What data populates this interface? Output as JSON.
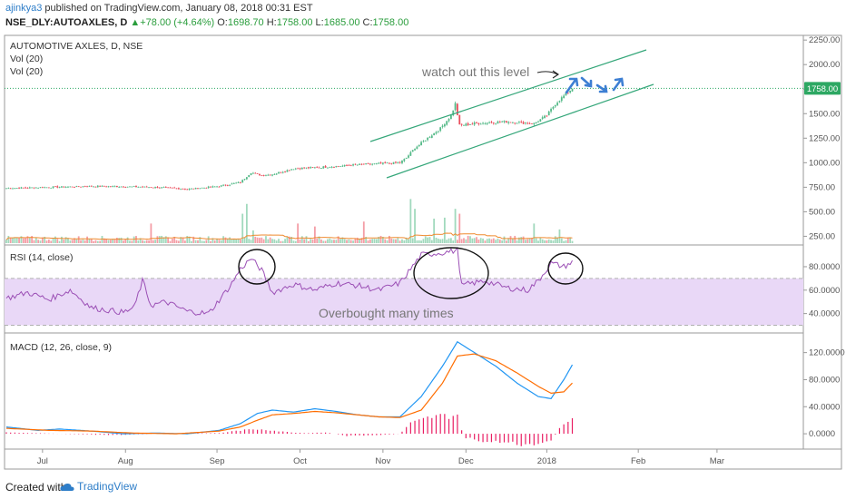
{
  "header": {
    "author": "ajinkya3",
    "published": "published on TradingView.com, January 08, 2018 00:31 EST",
    "symbol": "NSE_DLY:AUTOAXLES, D",
    "change": "+78.00 (+4.64%)",
    "ohlc": {
      "o_label": "O:",
      "o": "1698.70",
      "h_label": "H:",
      "h": "1758.00",
      "l_label": "L:",
      "l": "1685.00",
      "c_label": "C:",
      "c": "1758.00"
    }
  },
  "footer": {
    "created_with": "Created with",
    "brand": "TradingView"
  },
  "colors": {
    "up": "#53b987",
    "down": "#eb4d5c",
    "rsi": "#9b4fb5",
    "rsi_band": "#e9d8f7",
    "macd": "#2196f3",
    "signal": "#ff6d00",
    "hist": "#e91e63",
    "channel": "#35a77a",
    "annot_blue": "#3d7fd3",
    "last_price": "#2da863"
  },
  "chart_data": [
    {
      "type": "candlestick",
      "title": "AUTOMOTIVE AXLES, D, NSE",
      "sublabels": [
        "Vol (20)",
        "Vol (20)"
      ],
      "y_ticks": [
        "2250.00",
        "2000.00",
        "1750.00",
        "1500.00",
        "1250.00",
        "1000.00",
        "750.00",
        "500.00",
        "250.00"
      ],
      "ylim": [
        180,
        2270
      ],
      "last_price": "1758.00",
      "x_labels": [
        "Jul",
        "Aug",
        "Sep",
        "Oct",
        "Nov",
        "Dec",
        "2018",
        "Feb",
        "Mar"
      ],
      "close_anchors": [
        [
          0,
          740
        ],
        [
          40,
          760
        ],
        [
          62,
          755
        ],
        [
          75,
          745
        ],
        [
          85,
          730
        ],
        [
          100,
          760
        ],
        [
          110,
          800
        ],
        [
          115,
          900
        ],
        [
          120,
          870
        ],
        [
          125,
          880
        ],
        [
          135,
          940
        ],
        [
          145,
          950
        ],
        [
          160,
          970
        ],
        [
          165,
          980
        ],
        [
          175,
          990
        ],
        [
          185,
          1000
        ],
        [
          188,
          1050
        ],
        [
          192,
          1150
        ],
        [
          198,
          1250
        ],
        [
          204,
          1350
        ],
        [
          209,
          1480
        ],
        [
          211,
          1600
        ],
        [
          213,
          1380
        ],
        [
          220,
          1400
        ],
        [
          235,
          1420
        ],
        [
          248,
          1400
        ],
        [
          254,
          1480
        ],
        [
          258,
          1600
        ],
        [
          263,
          1700
        ],
        [
          266,
          1758
        ]
      ],
      "volume_spikes": [
        [
          68,
          200
        ],
        [
          111,
          300
        ],
        [
          113,
          400
        ],
        [
          116,
          130
        ],
        [
          137,
          200
        ],
        [
          145,
          170
        ],
        [
          168,
          220
        ],
        [
          190,
          450
        ],
        [
          192,
          350
        ],
        [
          201,
          250
        ],
        [
          206,
          260
        ],
        [
          211,
          350
        ],
        [
          213,
          300
        ],
        [
          248,
          200
        ],
        [
          260,
          140
        ]
      ],
      "annotations": [
        {
          "text": "watch out this level"
        },
        {
          "text": "Overbought many times"
        }
      ]
    },
    {
      "type": "line",
      "title": "RSI (14, close)",
      "y_ticks": [
        "80.0000",
        "60.0000",
        "40.0000"
      ],
      "ylim": [
        25,
        97
      ],
      "bands": [
        70,
        30
      ],
      "anchors": [
        [
          0,
          53
        ],
        [
          10,
          58
        ],
        [
          20,
          52
        ],
        [
          30,
          60
        ],
        [
          40,
          45
        ],
        [
          55,
          41
        ],
        [
          60,
          45
        ],
        [
          64,
          68
        ],
        [
          68,
          47
        ],
        [
          75,
          50
        ],
        [
          85,
          42
        ],
        [
          95,
          40
        ],
        [
          105,
          63
        ],
        [
          110,
          78
        ],
        [
          115,
          87
        ],
        [
          120,
          77
        ],
        [
          125,
          58
        ],
        [
          135,
          65
        ],
        [
          145,
          60
        ],
        [
          155,
          66
        ],
        [
          165,
          64
        ],
        [
          175,
          60
        ],
        [
          185,
          66
        ],
        [
          190,
          78
        ],
        [
          195,
          90
        ],
        [
          205,
          92
        ],
        [
          212,
          94
        ],
        [
          214,
          64
        ],
        [
          225,
          68
        ],
        [
          235,
          62
        ],
        [
          245,
          60
        ],
        [
          250,
          68
        ],
        [
          256,
          83
        ],
        [
          262,
          80
        ],
        [
          266,
          84
        ]
      ]
    },
    {
      "type": "line",
      "title": "MACD (12, 26, close, 9)",
      "y_ticks": [
        "120.0000",
        "80.0000",
        "40.0000",
        "0.0000"
      ],
      "ylim": [
        -20,
        145
      ],
      "series": [
        {
          "anchors": [
            [
              0,
              10
            ],
            [
              15,
              5
            ],
            [
              25,
              7
            ],
            [
              40,
              4
            ],
            [
              55,
              0
            ],
            [
              70,
              1
            ],
            [
              85,
              0
            ],
            [
              100,
              5
            ],
            [
              110,
              15
            ],
            [
              118,
              30
            ],
            [
              125,
              35
            ],
            [
              135,
              32
            ],
            [
              145,
              37
            ],
            [
              155,
              33
            ],
            [
              165,
              28
            ],
            [
              175,
              25
            ],
            [
              185,
              25
            ],
            [
              195,
              55
            ],
            [
              205,
              100
            ],
            [
              212,
              136
            ],
            [
              220,
              120
            ],
            [
              230,
              100
            ],
            [
              240,
              75
            ],
            [
              250,
              55
            ],
            [
              256,
              52
            ],
            [
              262,
              80
            ],
            [
              266,
              102
            ]
          ]
        },
        {
          "anchors": [
            [
              0,
              8
            ],
            [
              20,
              5
            ],
            [
              40,
              4
            ],
            [
              60,
              1
            ],
            [
              80,
              0
            ],
            [
              100,
              4
            ],
            [
              110,
              10
            ],
            [
              118,
              20
            ],
            [
              125,
              28
            ],
            [
              135,
              30
            ],
            [
              145,
              33
            ],
            [
              155,
              31
            ],
            [
              165,
              28
            ],
            [
              175,
              25
            ],
            [
              185,
              24
            ],
            [
              195,
              35
            ],
            [
              205,
              75
            ],
            [
              212,
              115
            ],
            [
              220,
              118
            ],
            [
              230,
              108
            ],
            [
              240,
              90
            ],
            [
              250,
              70
            ],
            [
              256,
              60
            ],
            [
              262,
              62
            ],
            [
              266,
              75
            ]
          ]
        }
      ],
      "histogram_anchors": [
        [
          0,
          2
        ],
        [
          50,
          -2
        ],
        [
          70,
          0
        ],
        [
          100,
          1
        ],
        [
          110,
          5
        ],
        [
          120,
          7
        ],
        [
          130,
          3
        ],
        [
          140,
          1
        ],
        [
          150,
          2
        ],
        [
          160,
          -3
        ],
        [
          175,
          -2
        ],
        [
          185,
          0
        ],
        [
          190,
          15
        ],
        [
          200,
          25
        ],
        [
          212,
          28
        ],
        [
          215,
          -5
        ],
        [
          225,
          -12
        ],
        [
          240,
          -15
        ],
        [
          250,
          -18
        ],
        [
          256,
          -10
        ],
        [
          262,
          17
        ],
        [
          266,
          27
        ]
      ]
    }
  ]
}
